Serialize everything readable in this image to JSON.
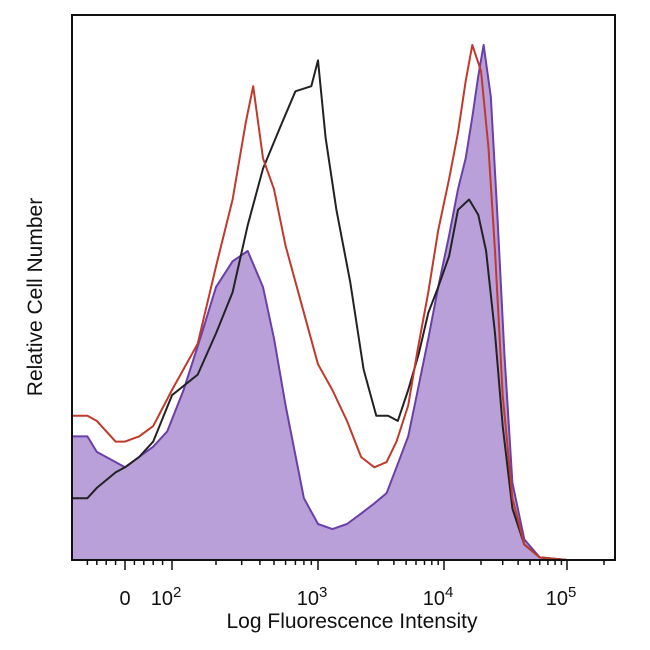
{
  "chart_data": {
    "type": "area",
    "title": "",
    "xlabel": "Log Fluorescence Intensity",
    "ylabel": "Relative Cell Number",
    "x_scale": "biexponential",
    "ylim": [
      0,
      100
    ],
    "grid": false,
    "legend": "none",
    "x_ticks": [
      {
        "label": "0",
        "value": 0
      },
      {
        "label": "10",
        "exp": "2",
        "value": 100
      },
      {
        "label": "10",
        "exp": "3",
        "value": 1000
      },
      {
        "label": "10",
        "exp": "4",
        "value": 10000
      },
      {
        "label": "10",
        "exp": "5",
        "value": 100000
      }
    ],
    "series": [
      {
        "color": "#222222",
        "fill": "none",
        "points": [
          [
            -80,
            12
          ],
          [
            -60,
            14
          ],
          [
            -20,
            17
          ],
          [
            0,
            18
          ],
          [
            30,
            20
          ],
          [
            60,
            23
          ],
          [
            100,
            32
          ],
          [
            150,
            36
          ],
          [
            200,
            44
          ],
          [
            260,
            52
          ],
          [
            330,
            65
          ],
          [
            420,
            76
          ],
          [
            550,
            84
          ],
          [
            700,
            91
          ],
          [
            900,
            92
          ],
          [
            1000,
            97
          ],
          [
            1150,
            82
          ],
          [
            1400,
            68
          ],
          [
            1800,
            54
          ],
          [
            2300,
            37
          ],
          [
            2900,
            28
          ],
          [
            3600,
            28
          ],
          [
            4300,
            27
          ],
          [
            5200,
            33
          ],
          [
            6300,
            40
          ],
          [
            7500,
            48
          ],
          [
            9000,
            53
          ],
          [
            11000,
            59
          ],
          [
            13000,
            68
          ],
          [
            16000,
            70
          ],
          [
            19000,
            67
          ],
          [
            22000,
            60
          ],
          [
            26000,
            44
          ],
          [
            30000,
            26
          ],
          [
            36000,
            10
          ],
          [
            45000,
            3
          ],
          [
            60000,
            0.5
          ],
          [
            100000,
            0
          ]
        ]
      },
      {
        "color": "#c0392b",
        "fill": "none",
        "points": [
          [
            -80,
            28
          ],
          [
            -60,
            27
          ],
          [
            -20,
            23
          ],
          [
            0,
            23
          ],
          [
            30,
            24
          ],
          [
            60,
            26
          ],
          [
            100,
            33
          ],
          [
            150,
            42
          ],
          [
            200,
            57
          ],
          [
            260,
            70
          ],
          [
            320,
            85
          ],
          [
            360,
            92
          ],
          [
            420,
            78
          ],
          [
            500,
            72
          ],
          [
            600,
            61
          ],
          [
            800,
            48
          ],
          [
            1000,
            38
          ],
          [
            1300,
            33
          ],
          [
            1700,
            27
          ],
          [
            2200,
            20
          ],
          [
            2800,
            18
          ],
          [
            3500,
            19
          ],
          [
            4200,
            23
          ],
          [
            5200,
            30
          ],
          [
            6200,
            41
          ],
          [
            7500,
            52
          ],
          [
            9000,
            64
          ],
          [
            11000,
            74
          ],
          [
            13000,
            83
          ],
          [
            15000,
            93
          ],
          [
            17000,
            100
          ],
          [
            20000,
            95
          ],
          [
            23000,
            80
          ],
          [
            26000,
            60
          ],
          [
            30000,
            32
          ],
          [
            36000,
            12
          ],
          [
            45000,
            3
          ],
          [
            60000,
            0.5
          ],
          [
            100000,
            0
          ]
        ]
      },
      {
        "color": "#6a3fa8",
        "fill": "#b9a0d9",
        "points": [
          [
            -80,
            24
          ],
          [
            -60,
            21
          ],
          [
            -20,
            19
          ],
          [
            0,
            18
          ],
          [
            30,
            20
          ],
          [
            60,
            22
          ],
          [
            90,
            25
          ],
          [
            120,
            33
          ],
          [
            160,
            44
          ],
          [
            200,
            53
          ],
          [
            260,
            58
          ],
          [
            330,
            60
          ],
          [
            420,
            53
          ],
          [
            500,
            43
          ],
          [
            600,
            30
          ],
          [
            800,
            12
          ],
          [
            1000,
            7
          ],
          [
            1300,
            6
          ],
          [
            1700,
            7
          ],
          [
            2200,
            9
          ],
          [
            2800,
            11
          ],
          [
            3500,
            13
          ],
          [
            4200,
            18
          ],
          [
            5200,
            24
          ],
          [
            6200,
            33
          ],
          [
            7500,
            43
          ],
          [
            9000,
            53
          ],
          [
            11000,
            63
          ],
          [
            13000,
            72
          ],
          [
            15000,
            78
          ],
          [
            17000,
            86
          ],
          [
            19000,
            94
          ],
          [
            21000,
            100
          ],
          [
            24000,
            90
          ],
          [
            27000,
            68
          ],
          [
            31000,
            40
          ],
          [
            36000,
            15
          ],
          [
            45000,
            4
          ],
          [
            60000,
            0.5
          ],
          [
            100000,
            0
          ]
        ]
      }
    ]
  }
}
